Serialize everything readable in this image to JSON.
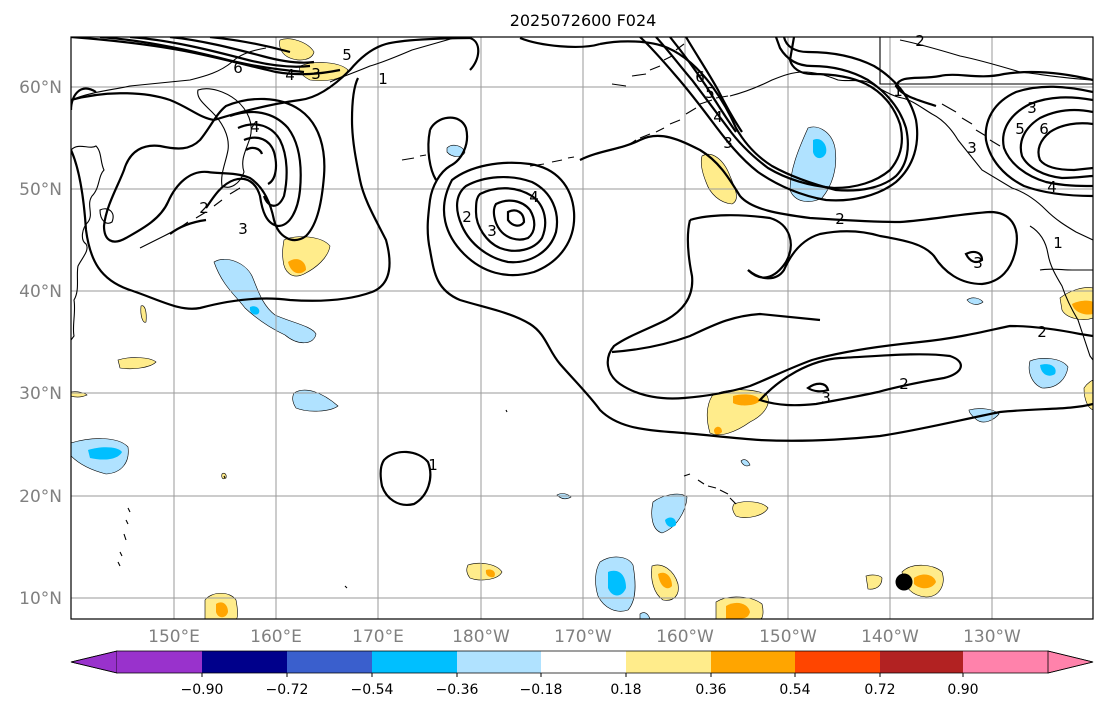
{
  "title": "2025072600 F024",
  "lat_labels": [
    "60°N",
    "50°N",
    "40°N",
    "30°N",
    "20°N",
    "10°N"
  ],
  "lon_labels": [
    "150°E",
    "160°E",
    "170°E",
    "180°W",
    "170°W",
    "160°W",
    "150°W",
    "140°W",
    "130°W"
  ],
  "contour_labels": [
    "6",
    "5",
    "4",
    "3",
    "1",
    "4",
    "3",
    "2",
    "4",
    "3",
    "2",
    "1",
    "2",
    "3",
    "3",
    "2",
    "6",
    "5",
    "4",
    "3",
    "2",
    "1",
    "5",
    "6",
    "3",
    "4",
    "1",
    "2",
    "3"
  ],
  "colorbar": {
    "tick_labels": [
      "−0.90",
      "−0.72",
      "−0.54",
      "−0.36",
      "−0.18",
      "0.18",
      "0.36",
      "0.54",
      "0.72",
      "0.90"
    ],
    "colors": [
      "#9932cc",
      "#00008b",
      "#3a5fcd",
      "#00bfff",
      "#b0e2ff",
      "#ffffff",
      "#ffec8b",
      "#ffa500",
      "#ff4500",
      "#b22222",
      "#ff82ab"
    ]
  },
  "colors": {
    "neg_light": "#b0e2ff",
    "neg_mid": "#00bfff",
    "pos_light": "#ffec8b",
    "pos_mid": "#ffa500",
    "marker": "#000000"
  }
}
